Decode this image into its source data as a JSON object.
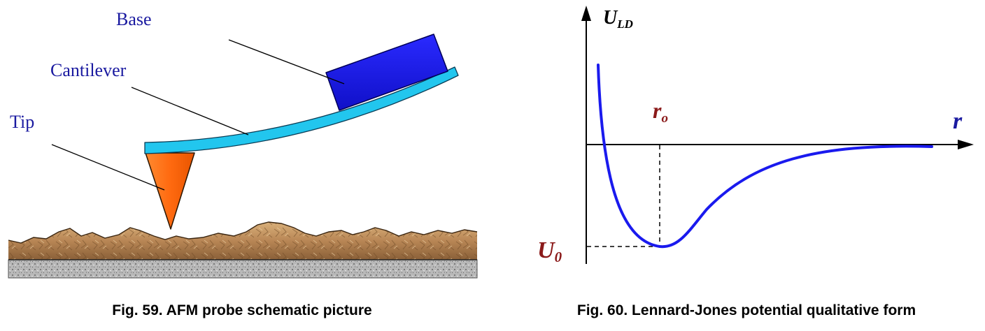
{
  "afm": {
    "labels": {
      "base": "Base",
      "cantilever": "Cantilever",
      "tip": "Tip"
    },
    "caption": "Fig. 59. AFM probe schematic picture",
    "colors": {
      "base": "#1313dd",
      "cantilever": "#22c6ee",
      "tip": "#ff6a10",
      "label": "#1a1aa0",
      "surface": "#c09060",
      "substrate": "#b0b0b0"
    }
  },
  "lj": {
    "y_axis_label": {
      "main": "U",
      "sub": "LD"
    },
    "x_axis_label": "r",
    "r0_label": {
      "main": "r",
      "sub": "o"
    },
    "u0_label": {
      "main": "U",
      "sub": "0"
    },
    "caption": "Fig. 60. Lennard-Jones potential qualitative form",
    "colors": {
      "curve": "#1a1aee",
      "axis_label_blue": "#1a1aa0",
      "marker_label_red": "#8b1a1a"
    }
  }
}
